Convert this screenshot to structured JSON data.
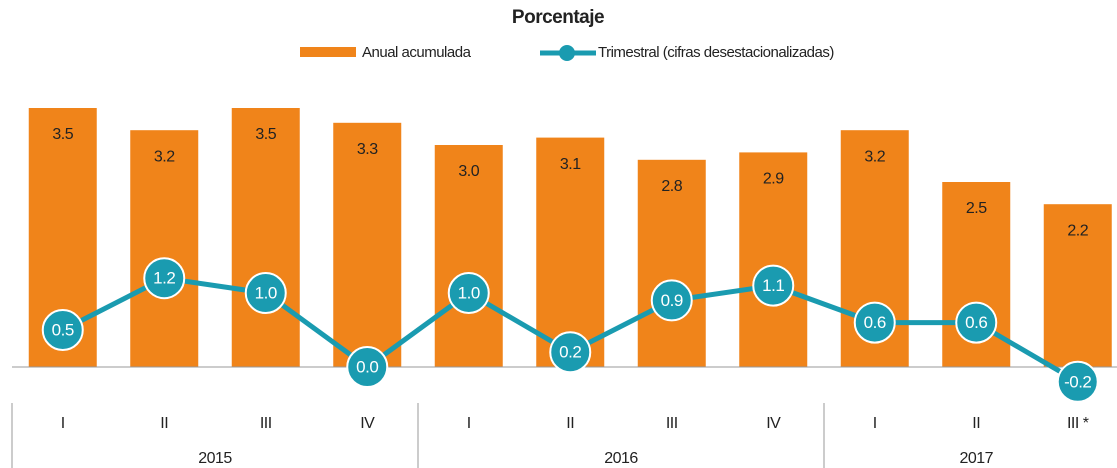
{
  "chart_data": {
    "type": "bar-line",
    "title": "Porcentaje",
    "category_groups": [
      {
        "name": "2015",
        "categories": [
          "I",
          "II",
          "III",
          "IV"
        ]
      },
      {
        "name": "2016",
        "categories": [
          "I",
          "II",
          "III",
          "IV"
        ]
      },
      {
        "name": "2017",
        "categories": [
          "I",
          "II",
          "III *"
        ]
      }
    ],
    "series": [
      {
        "name": "Anual acumulada",
        "type": "bar",
        "color": "#f0841a",
        "values": [
          3.5,
          3.2,
          3.5,
          3.3,
          3.0,
          3.1,
          2.8,
          2.9,
          3.2,
          2.5,
          2.2
        ],
        "value_labels": [
          "3.5",
          "3.2",
          "3.5",
          "3.3",
          "3.0",
          "3.1",
          "2.8",
          "2.9",
          "3.2",
          "2.5",
          "2.2"
        ]
      },
      {
        "name": "Trimestral (cifras desestacionalizadas)",
        "type": "line",
        "color": "#1a9bb0",
        "values": [
          0.5,
          1.2,
          1.0,
          0.0,
          1.0,
          0.2,
          0.9,
          1.1,
          0.6,
          0.6,
          -0.2
        ],
        "value_labels": [
          "0.5",
          "1.2",
          "1.0",
          "0.0",
          "1.0",
          "0.2",
          "0.9",
          "1.1",
          "0.6",
          "0.6",
          "-0.2"
        ]
      }
    ]
  }
}
